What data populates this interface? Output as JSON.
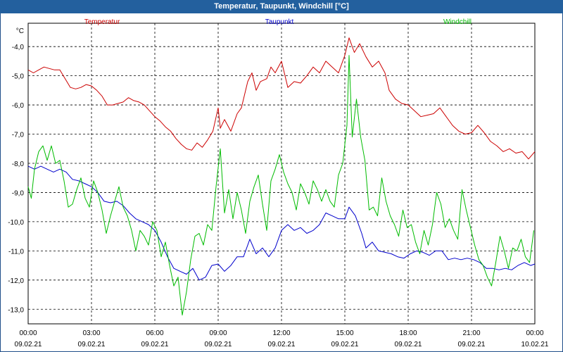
{
  "window": {
    "title": "Temperatur, Taupunkt, Windchill [°C]"
  },
  "chart_data": {
    "type": "line",
    "title": "Temperatur, Taupunkt, Windchill [°C]",
    "unit_label": "°C",
    "ylim": [
      -13.5,
      -3.2
    ],
    "y_ticks": [
      "-4,0",
      "-5,0",
      "-6,0",
      "-7,0",
      "-8,0",
      "-9,0",
      "-10,0",
      "-11,0",
      "-12,0",
      "-13,0"
    ],
    "y_tick_values": [
      -4,
      -5,
      -6,
      -7,
      -8,
      -9,
      -10,
      -11,
      -12,
      -13
    ],
    "x_range_hours": [
      0,
      24
    ],
    "x_ticks": [
      {
        "time": "00:00",
        "date": "09.02.21"
      },
      {
        "time": "03:00",
        "date": "09.02.21"
      },
      {
        "time": "06:00",
        "date": "09.02.21"
      },
      {
        "time": "09:00",
        "date": "09.02.21"
      },
      {
        "time": "12:00",
        "date": "09.02.21"
      },
      {
        "time": "15:00",
        "date": "09.02.21"
      },
      {
        "time": "18:00",
        "date": "09.02.21"
      },
      {
        "time": "21:00",
        "date": "09.02.21"
      },
      {
        "time": "00:00",
        "date": "10.02.21"
      }
    ],
    "grid": true,
    "legend_placement": "top",
    "series": [
      {
        "name": "Temperatur",
        "color": "#cc0000",
        "points": [
          [
            0.0,
            -4.8
          ],
          [
            0.25,
            -4.9
          ],
          [
            0.5,
            -4.8
          ],
          [
            0.75,
            -4.7
          ],
          [
            1.0,
            -4.75
          ],
          [
            1.25,
            -4.8
          ],
          [
            1.5,
            -4.8
          ],
          [
            1.75,
            -5.1
          ],
          [
            2.0,
            -5.4
          ],
          [
            2.25,
            -5.45
          ],
          [
            2.5,
            -5.4
          ],
          [
            2.75,
            -5.3
          ],
          [
            3.0,
            -5.35
          ],
          [
            3.25,
            -5.5
          ],
          [
            3.5,
            -5.7
          ],
          [
            3.75,
            -6.0
          ],
          [
            4.0,
            -6.0
          ],
          [
            4.25,
            -5.95
          ],
          [
            4.5,
            -5.9
          ],
          [
            4.75,
            -5.75
          ],
          [
            5.0,
            -5.85
          ],
          [
            5.25,
            -5.9
          ],
          [
            5.5,
            -6.0
          ],
          [
            5.75,
            -6.2
          ],
          [
            6.0,
            -6.4
          ],
          [
            6.25,
            -6.55
          ],
          [
            6.5,
            -6.75
          ],
          [
            6.75,
            -6.9
          ],
          [
            7.0,
            -7.15
          ],
          [
            7.25,
            -7.35
          ],
          [
            7.5,
            -7.5
          ],
          [
            7.75,
            -7.55
          ],
          [
            8.0,
            -7.3
          ],
          [
            8.25,
            -7.45
          ],
          [
            8.5,
            -7.2
          ],
          [
            8.75,
            -6.9
          ],
          [
            9.0,
            -6.1
          ],
          [
            9.1,
            -6.8
          ],
          [
            9.3,
            -6.5
          ],
          [
            9.6,
            -6.9
          ],
          [
            9.9,
            -6.3
          ],
          [
            10.1,
            -6.1
          ],
          [
            10.4,
            -5.2
          ],
          [
            10.6,
            -4.9
          ],
          [
            10.8,
            -5.5
          ],
          [
            11.0,
            -5.2
          ],
          [
            11.3,
            -5.1
          ],
          [
            11.5,
            -4.7
          ],
          [
            11.7,
            -4.9
          ],
          [
            12.0,
            -4.5
          ],
          [
            12.3,
            -5.4
          ],
          [
            12.6,
            -5.2
          ],
          [
            12.9,
            -5.25
          ],
          [
            13.2,
            -5.0
          ],
          [
            13.5,
            -4.7
          ],
          [
            13.8,
            -4.9
          ],
          [
            14.1,
            -4.5
          ],
          [
            14.4,
            -4.7
          ],
          [
            14.7,
            -4.9
          ],
          [
            15.0,
            -4.3
          ],
          [
            15.2,
            -3.7
          ],
          [
            15.45,
            -4.2
          ],
          [
            15.7,
            -3.9
          ],
          [
            16.0,
            -4.35
          ],
          [
            16.3,
            -4.7
          ],
          [
            16.6,
            -4.5
          ],
          [
            16.9,
            -4.9
          ],
          [
            17.1,
            -5.5
          ],
          [
            17.4,
            -5.8
          ],
          [
            17.7,
            -5.95
          ],
          [
            18.0,
            -6.0
          ],
          [
            18.3,
            -6.2
          ],
          [
            18.6,
            -6.4
          ],
          [
            18.9,
            -6.35
          ],
          [
            19.2,
            -6.3
          ],
          [
            19.5,
            -6.1
          ],
          [
            19.8,
            -6.4
          ],
          [
            20.1,
            -6.7
          ],
          [
            20.4,
            -6.9
          ],
          [
            20.7,
            -7.0
          ],
          [
            21.0,
            -6.95
          ],
          [
            21.3,
            -6.7
          ],
          [
            21.6,
            -6.95
          ],
          [
            21.9,
            -7.25
          ],
          [
            22.2,
            -7.4
          ],
          [
            22.5,
            -7.6
          ],
          [
            22.8,
            -7.5
          ],
          [
            23.1,
            -7.65
          ],
          [
            23.4,
            -7.6
          ],
          [
            23.7,
            -7.85
          ],
          [
            24.0,
            -7.6
          ]
        ]
      },
      {
        "name": "Taupunkt",
        "color": "#0000cc",
        "points": [
          [
            0.0,
            -8.1
          ],
          [
            0.3,
            -8.2
          ],
          [
            0.6,
            -8.1
          ],
          [
            0.9,
            -8.2
          ],
          [
            1.2,
            -8.3
          ],
          [
            1.5,
            -8.2
          ],
          [
            1.8,
            -8.3
          ],
          [
            2.1,
            -8.55
          ],
          [
            2.4,
            -8.6
          ],
          [
            2.7,
            -8.7
          ],
          [
            3.0,
            -8.8
          ],
          [
            3.3,
            -9.0
          ],
          [
            3.6,
            -9.3
          ],
          [
            3.9,
            -9.35
          ],
          [
            4.2,
            -9.3
          ],
          [
            4.5,
            -9.45
          ],
          [
            4.8,
            -9.7
          ],
          [
            5.1,
            -9.9
          ],
          [
            5.4,
            -10.0
          ],
          [
            5.7,
            -10.1
          ],
          [
            6.0,
            -10.3
          ],
          [
            6.3,
            -10.7
          ],
          [
            6.6,
            -11.2
          ],
          [
            6.9,
            -11.6
          ],
          [
            7.2,
            -11.7
          ],
          [
            7.5,
            -11.8
          ],
          [
            7.8,
            -11.6
          ],
          [
            8.1,
            -12.0
          ],
          [
            8.4,
            -11.9
          ],
          [
            8.7,
            -11.5
          ],
          [
            9.0,
            -11.45
          ],
          [
            9.3,
            -11.7
          ],
          [
            9.6,
            -11.5
          ],
          [
            9.9,
            -11.2
          ],
          [
            10.2,
            -11.2
          ],
          [
            10.5,
            -10.6
          ],
          [
            10.8,
            -11.1
          ],
          [
            11.1,
            -10.9
          ],
          [
            11.4,
            -11.2
          ],
          [
            11.7,
            -10.9
          ],
          [
            12.0,
            -10.3
          ],
          [
            12.3,
            -10.1
          ],
          [
            12.6,
            -10.3
          ],
          [
            12.9,
            -10.2
          ],
          [
            13.2,
            -10.4
          ],
          [
            13.5,
            -10.3
          ],
          [
            13.8,
            -10.1
          ],
          [
            14.1,
            -9.7
          ],
          [
            14.4,
            -9.8
          ],
          [
            14.7,
            -9.9
          ],
          [
            15.0,
            -9.9
          ],
          [
            15.2,
            -9.5
          ],
          [
            15.5,
            -9.8
          ],
          [
            15.8,
            -10.4
          ],
          [
            16.0,
            -10.9
          ],
          [
            16.3,
            -10.7
          ],
          [
            16.6,
            -11.0
          ],
          [
            16.9,
            -11.05
          ],
          [
            17.2,
            -11.1
          ],
          [
            17.5,
            -11.2
          ],
          [
            17.8,
            -11.25
          ],
          [
            18.1,
            -11.1
          ],
          [
            18.4,
            -11.0
          ],
          [
            18.7,
            -11.05
          ],
          [
            19.0,
            -11.15
          ],
          [
            19.3,
            -11.0
          ],
          [
            19.6,
            -11.0
          ],
          [
            19.9,
            -11.3
          ],
          [
            20.2,
            -11.25
          ],
          [
            20.5,
            -11.3
          ],
          [
            20.8,
            -11.25
          ],
          [
            21.1,
            -11.3
          ],
          [
            21.4,
            -11.4
          ],
          [
            21.7,
            -11.6
          ],
          [
            22.0,
            -11.6
          ],
          [
            22.3,
            -11.65
          ],
          [
            22.6,
            -11.6
          ],
          [
            22.9,
            -11.65
          ],
          [
            23.2,
            -11.5
          ],
          [
            23.5,
            -11.4
          ],
          [
            23.8,
            -11.5
          ],
          [
            24.0,
            -11.45
          ]
        ]
      },
      {
        "name": "Windchill",
        "color": "#00bb00",
        "points": [
          [
            0.0,
            -8.8
          ],
          [
            0.15,
            -9.2
          ],
          [
            0.3,
            -8.2
          ],
          [
            0.5,
            -7.6
          ],
          [
            0.7,
            -7.4
          ],
          [
            0.9,
            -7.9
          ],
          [
            1.1,
            -7.4
          ],
          [
            1.3,
            -8.0
          ],
          [
            1.5,
            -7.9
          ],
          [
            1.7,
            -8.6
          ],
          [
            1.9,
            -9.5
          ],
          [
            2.1,
            -9.4
          ],
          [
            2.3,
            -8.9
          ],
          [
            2.5,
            -8.5
          ],
          [
            2.7,
            -9.2
          ],
          [
            2.9,
            -9.5
          ],
          [
            3.1,
            -8.6
          ],
          [
            3.3,
            -9.0
          ],
          [
            3.5,
            -9.6
          ],
          [
            3.7,
            -10.4
          ],
          [
            3.9,
            -9.8
          ],
          [
            4.1,
            -9.3
          ],
          [
            4.3,
            -8.8
          ],
          [
            4.5,
            -9.5
          ],
          [
            4.7,
            -9.8
          ],
          [
            4.9,
            -10.3
          ],
          [
            5.1,
            -11.0
          ],
          [
            5.3,
            -10.3
          ],
          [
            5.5,
            -10.5
          ],
          [
            5.7,
            -10.8
          ],
          [
            5.9,
            -10.0
          ],
          [
            6.1,
            -10.3
          ],
          [
            6.3,
            -11.2
          ],
          [
            6.5,
            -10.7
          ],
          [
            6.7,
            -11.5
          ],
          [
            6.9,
            -12.2
          ],
          [
            7.1,
            -11.9
          ],
          [
            7.3,
            -13.2
          ],
          [
            7.5,
            -12.4
          ],
          [
            7.7,
            -11.3
          ],
          [
            7.9,
            -10.5
          ],
          [
            8.1,
            -10.4
          ],
          [
            8.3,
            -10.8
          ],
          [
            8.5,
            -10.1
          ],
          [
            8.7,
            -10.3
          ],
          [
            8.9,
            -8.8
          ],
          [
            9.1,
            -7.5
          ],
          [
            9.3,
            -9.7
          ],
          [
            9.5,
            -8.9
          ],
          [
            9.7,
            -9.9
          ],
          [
            9.9,
            -9.0
          ],
          [
            10.1,
            -9.6
          ],
          [
            10.3,
            -10.4
          ],
          [
            10.5,
            -9.3
          ],
          [
            10.7,
            -8.8
          ],
          [
            10.9,
            -8.4
          ],
          [
            11.1,
            -9.4
          ],
          [
            11.3,
            -10.3
          ],
          [
            11.5,
            -8.6
          ],
          [
            11.7,
            -8.2
          ],
          [
            11.9,
            -7.7
          ],
          [
            12.1,
            -8.3
          ],
          [
            12.3,
            -8.7
          ],
          [
            12.5,
            -9.0
          ],
          [
            12.7,
            -9.6
          ],
          [
            12.9,
            -8.7
          ],
          [
            13.1,
            -9.0
          ],
          [
            13.3,
            -9.4
          ],
          [
            13.5,
            -8.6
          ],
          [
            13.7,
            -8.9
          ],
          [
            13.9,
            -9.3
          ],
          [
            14.1,
            -8.9
          ],
          [
            14.3,
            -9.3
          ],
          [
            14.5,
            -9.5
          ],
          [
            14.7,
            -8.4
          ],
          [
            14.9,
            -8.0
          ],
          [
            15.1,
            -6.7
          ],
          [
            15.2,
            -4.3
          ],
          [
            15.35,
            -7.1
          ],
          [
            15.55,
            -5.8
          ],
          [
            15.75,
            -7.1
          ],
          [
            15.95,
            -7.9
          ],
          [
            16.15,
            -9.6
          ],
          [
            16.35,
            -9.5
          ],
          [
            16.55,
            -9.8
          ],
          [
            16.75,
            -8.5
          ],
          [
            16.95,
            -9.3
          ],
          [
            17.15,
            -9.8
          ],
          [
            17.35,
            -10.1
          ],
          [
            17.55,
            -10.5
          ],
          [
            17.75,
            -9.6
          ],
          [
            17.95,
            -10.2
          ],
          [
            18.15,
            -10.1
          ],
          [
            18.35,
            -10.7
          ],
          [
            18.55,
            -11.1
          ],
          [
            18.75,
            -10.3
          ],
          [
            18.95,
            -10.8
          ],
          [
            19.15,
            -10.1
          ],
          [
            19.35,
            -9.0
          ],
          [
            19.55,
            -9.4
          ],
          [
            19.75,
            -10.2
          ],
          [
            19.95,
            -9.9
          ],
          [
            20.15,
            -10.3
          ],
          [
            20.35,
            -10.6
          ],
          [
            20.55,
            -8.9
          ],
          [
            20.75,
            -9.6
          ],
          [
            20.95,
            -10.2
          ],
          [
            21.15,
            -10.8
          ],
          [
            21.35,
            -11.3
          ],
          [
            21.55,
            -11.5
          ],
          [
            21.75,
            -11.9
          ],
          [
            21.95,
            -12.2
          ],
          [
            22.15,
            -11.4
          ],
          [
            22.35,
            -10.5
          ],
          [
            22.55,
            -11.0
          ],
          [
            22.75,
            -11.6
          ],
          [
            22.95,
            -10.9
          ],
          [
            23.15,
            -11.0
          ],
          [
            23.35,
            -10.6
          ],
          [
            23.55,
            -11.2
          ],
          [
            23.75,
            -11.4
          ],
          [
            23.95,
            -10.3
          ]
        ]
      }
    ]
  }
}
